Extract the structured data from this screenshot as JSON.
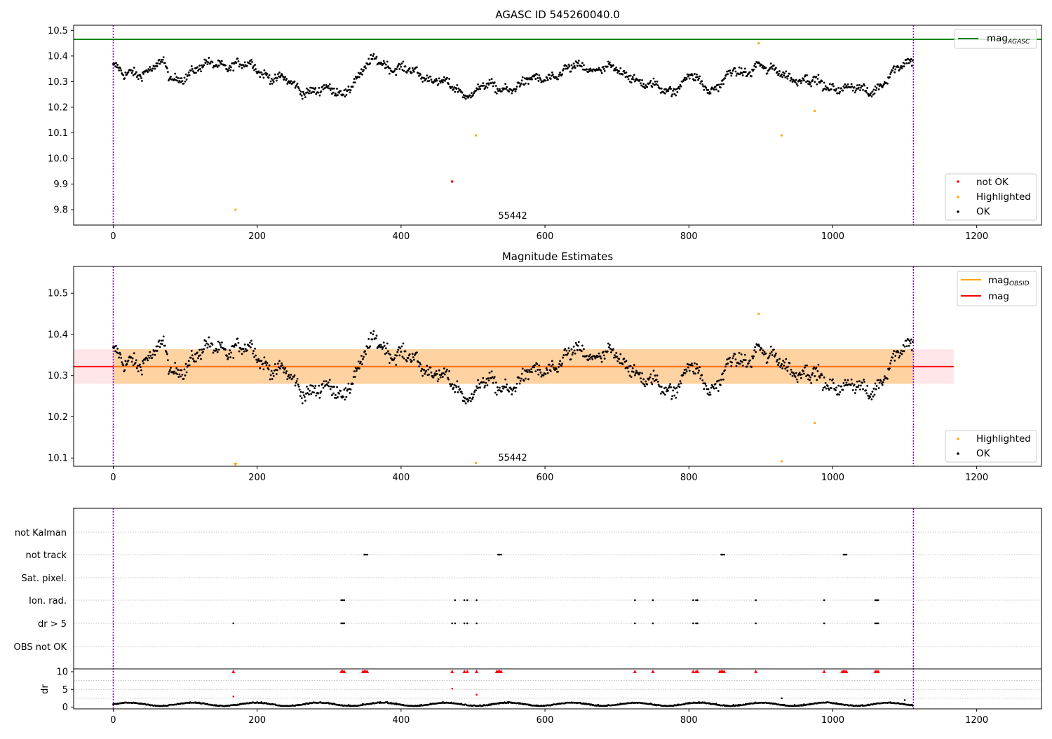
{
  "chart_data": [
    {
      "type": "scatter",
      "title": "AGASC ID 545260040.0",
      "annotation": "55442",
      "xlim": [
        -55,
        1290
      ],
      "ylim": [
        9.74,
        10.52
      ],
      "xticks": [
        0,
        200,
        400,
        600,
        800,
        1000,
        1200
      ],
      "yticks": [
        9.8,
        9.9,
        10.0,
        10.1,
        10.2,
        10.3,
        10.4,
        10.5
      ],
      "vlines": [
        0,
        1112
      ],
      "mag_agasc": 10.465,
      "legend_lines": [
        {
          "name": "mag",
          "sub": "AGASC",
          "color": "#008000"
        }
      ],
      "legend_points": [
        {
          "name": "not OK",
          "color": "#ff0000"
        },
        {
          "name": "Highlighted",
          "color": "#ffa500"
        },
        {
          "name": "OK",
          "color": "#000000"
        }
      ],
      "ok_series": {
        "n": 1112,
        "color": "#000000",
        "anchors": [
          [
            0,
            10.36
          ],
          [
            15,
            10.32
          ],
          [
            40,
            10.34
          ],
          [
            70,
            10.37
          ],
          [
            80,
            10.3
          ],
          [
            100,
            10.33
          ],
          [
            140,
            10.37
          ],
          [
            195,
            10.36
          ],
          [
            220,
            10.32
          ],
          [
            240,
            10.3
          ],
          [
            260,
            10.27
          ],
          [
            320,
            10.26
          ],
          [
            345,
            10.33
          ],
          [
            365,
            10.39
          ],
          [
            395,
            10.35
          ],
          [
            440,
            10.32
          ],
          [
            460,
            10.29
          ],
          [
            490,
            10.25
          ],
          [
            510,
            10.28
          ],
          [
            540,
            10.27
          ],
          [
            580,
            10.3
          ],
          [
            620,
            10.33
          ],
          [
            650,
            10.36
          ],
          [
            700,
            10.34
          ],
          [
            720,
            10.33
          ],
          [
            740,
            10.28
          ],
          [
            780,
            10.27
          ],
          [
            800,
            10.32
          ],
          [
            830,
            10.27
          ],
          [
            860,
            10.33
          ],
          [
            880,
            10.33
          ],
          [
            895,
            10.38
          ],
          [
            910,
            10.34
          ],
          [
            960,
            10.31
          ],
          [
            990,
            10.28
          ],
          [
            1010,
            10.28
          ],
          [
            1050,
            10.26
          ],
          [
            1080,
            10.32
          ],
          [
            1100,
            10.37
          ],
          [
            1112,
            10.39
          ]
        ],
        "noise": 0.028
      },
      "highlighted": [
        [
          170,
          9.8
        ],
        [
          504,
          10.09
        ],
        [
          897,
          10.45
        ],
        [
          929,
          10.09
        ],
        [
          975,
          10.185
        ]
      ],
      "not_ok": [
        [
          471,
          9.91
        ]
      ]
    },
    {
      "type": "scatter",
      "title": "Magnitude Estimates",
      "annotation": "55442",
      "xlim": [
        -55,
        1290
      ],
      "ylim": [
        10.08,
        10.565
      ],
      "xticks": [
        0,
        200,
        400,
        600,
        800,
        1000,
        1200
      ],
      "yticks": [
        10.1,
        10.2,
        10.3,
        10.4,
        10.5
      ],
      "vlines": [
        0,
        1112
      ],
      "mag": 10.322,
      "mag_band": [
        10.28,
        10.364
      ],
      "band_xrange": [
        -55,
        1168
      ],
      "legend_lines": [
        {
          "name": "mag",
          "sub": "OBSID",
          "color": "#ffa500"
        },
        {
          "name": "mag",
          "sub": "",
          "color": "#ff0000"
        }
      ],
      "legend_points": [
        {
          "name": "Highlighted",
          "color": "#ffa500"
        },
        {
          "name": "OK",
          "color": "#000000"
        }
      ],
      "highlighted": [
        [
          504,
          10.088
        ],
        [
          897,
          10.45
        ],
        [
          929,
          10.092
        ],
        [
          975,
          10.185
        ]
      ],
      "off_scale": [
        [
          170,
          10.085
        ]
      ]
    },
    {
      "type": "scatter",
      "title": "",
      "xlim": [
        -55,
        1290
      ],
      "xticks": [
        0,
        200,
        400,
        600,
        800,
        1000,
        1200
      ],
      "vlines": [
        0,
        1112
      ],
      "flag_labels": [
        "not Kalman",
        "not track",
        "Sat. pixel.",
        "Ion. rad.",
        "dr > 5",
        "OBS not OK"
      ],
      "flags": {
        "not track": [
          349,
          351,
          353,
          535,
          537,
          539,
          845,
          847,
          849,
          1015,
          1017,
          1019
        ],
        "Ion. rad.": [
          317,
          319,
          321,
          475,
          488,
          492,
          505,
          725,
          750,
          806,
          810,
          812,
          893,
          988,
          1059,
          1061,
          1063
        ],
        "dr > 5": [
          167,
          317,
          319,
          321,
          471,
          475,
          488,
          492,
          505,
          725,
          750,
          806,
          810,
          812,
          893,
          988,
          1059,
          1061,
          1063
        ]
      },
      "dr": {
        "ylabel": "dr",
        "ylim": [
          -0.5,
          10.8
        ],
        "yticks": [
          0,
          5,
          10
        ],
        "clipped_x": [
          167,
          317,
          319,
          321,
          347,
          349,
          351,
          353,
          471,
          488,
          492,
          505,
          533,
          535,
          537,
          539,
          725,
          750,
          806,
          810,
          812,
          843,
          845,
          847,
          849,
          893,
          988,
          1013,
          1015,
          1017,
          1019,
          1059,
          1061,
          1063
        ],
        "outliers": [
          [
            167,
            3.0
          ],
          [
            471,
            5.2
          ],
          [
            505,
            3.5
          ],
          [
            929,
            2.5
          ],
          [
            1100,
            2.0
          ]
        ]
      }
    }
  ]
}
